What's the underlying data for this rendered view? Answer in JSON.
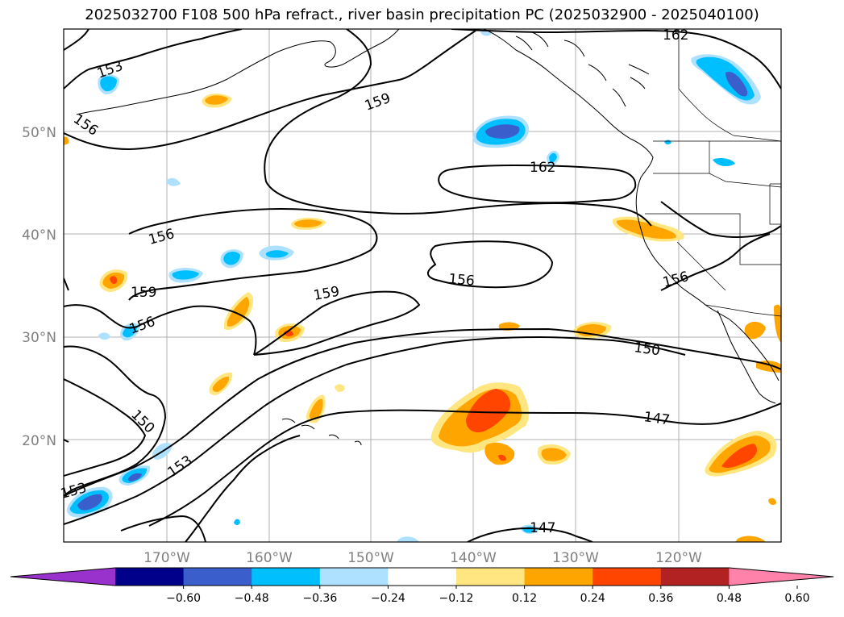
{
  "title": "2025032700 F108 500 hPa refract., river basin precipitation PC (2025032900 - 2025040100)",
  "axes": {
    "lat_labels": [
      "50°N",
      "40°N",
      "30°N",
      "20°N"
    ],
    "lon_labels": [
      "170°W",
      "160°W",
      "150°W",
      "140°W",
      "130°W",
      "120°W"
    ]
  },
  "contour_labels": [
    "153",
    "156",
    "159",
    "162",
    "162",
    "156",
    "159",
    "156",
    "159",
    "156",
    "156",
    "150",
    "150",
    "153",
    "153",
    "147",
    "147"
  ],
  "colorbar": {
    "ticks": [
      "−0.60",
      "−0.48",
      "−0.36",
      "−0.24",
      "−0.12",
      "0.12",
      "0.24",
      "0.36",
      "0.48",
      "0.60"
    ],
    "colors": [
      "#9932CC",
      "#00008B",
      "#3A5FCD",
      "#00BFFF",
      "#ADE1FF",
      "#FFFFFF",
      "#FFE680",
      "#FFA500",
      "#FF4500",
      "#B22222",
      "#FF82AB"
    ]
  }
}
